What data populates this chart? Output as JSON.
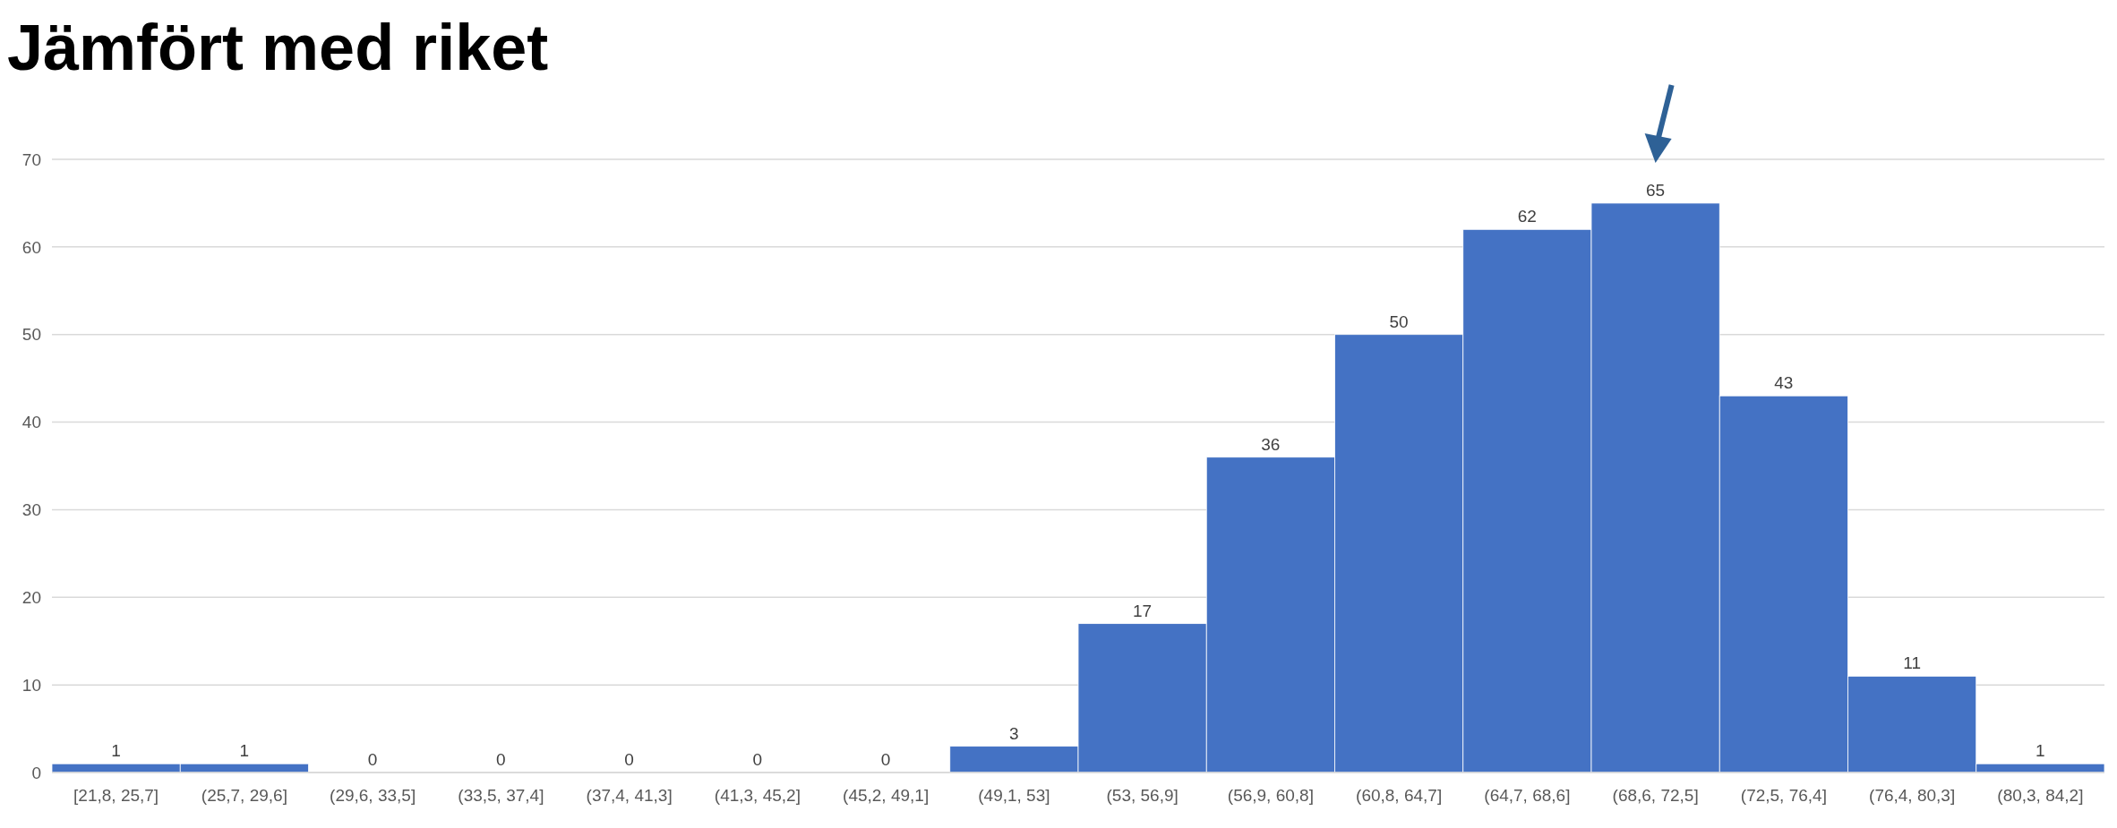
{
  "chart_data": {
    "type": "bar",
    "title": "Jämfört med riket",
    "categories": [
      "[21,8, 25,7]",
      "(25,7, 29,6]",
      "(29,6, 33,5]",
      "(33,5, 37,4]",
      "(37,4, 41,3]",
      "(41,3, 45,2]",
      "(45,2, 49,1]",
      "(49,1, 53]",
      "(53, 56,9]",
      "(56,9, 60,8]",
      "(60,8, 64,7]",
      "(64,7, 68,6]",
      "(68,6, 72,5]",
      "(72,5, 76,4]",
      "(76,4, 80,3]",
      "(80,3, 84,2]"
    ],
    "values": [
      1,
      1,
      0,
      0,
      0,
      0,
      0,
      3,
      17,
      36,
      50,
      62,
      65,
      43,
      11,
      1
    ],
    "color": "#4472c4",
    "ylim": [
      0,
      70
    ],
    "yticks": [
      0,
      10,
      20,
      30,
      40,
      50,
      60,
      70
    ],
    "grid": "y",
    "data_labels": true
  }
}
